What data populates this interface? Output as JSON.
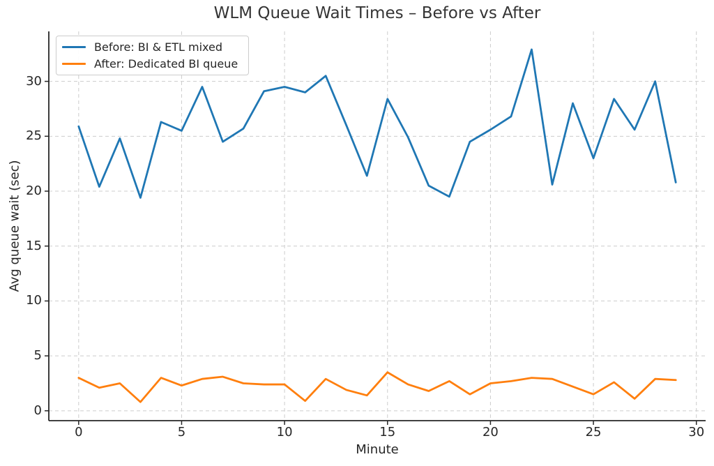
{
  "chart_data": {
    "type": "line",
    "title": "WLM Queue Wait Times – Before vs After",
    "xlabel": "Minute",
    "ylabel": "Avg queue wait (sec)",
    "x": [
      0,
      1,
      2,
      3,
      4,
      5,
      6,
      7,
      8,
      9,
      10,
      11,
      12,
      13,
      14,
      15,
      16,
      17,
      18,
      19,
      20,
      21,
      22,
      23,
      24,
      25,
      26,
      27,
      28,
      29
    ],
    "series": [
      {
        "name": "Before: BI & ETL mixed",
        "color": "#1f77b4",
        "values": [
          25.9,
          20.4,
          24.8,
          19.4,
          26.3,
          25.5,
          29.5,
          24.5,
          25.7,
          29.1,
          29.5,
          29.0,
          30.5,
          26.0,
          21.4,
          28.4,
          24.9,
          20.5,
          19.5,
          24.5,
          25.6,
          26.8,
          32.9,
          20.6,
          28.0,
          23.0,
          28.4,
          25.6,
          30.0,
          20.8
        ]
      },
      {
        "name": "After: Dedicated BI queue",
        "color": "#ff7f0e",
        "values": [
          3.0,
          2.1,
          2.5,
          0.8,
          3.0,
          2.3,
          2.9,
          3.1,
          2.5,
          2.4,
          2.4,
          0.9,
          2.9,
          1.9,
          1.4,
          3.5,
          2.4,
          1.8,
          2.7,
          1.5,
          2.5,
          2.7,
          3.0,
          2.9,
          2.2,
          1.5,
          2.6,
          1.1,
          2.9,
          2.8
        ]
      }
    ],
    "x_ticks": [
      0,
      5,
      10,
      15,
      20,
      25,
      30
    ],
    "y_ticks": [
      0,
      5,
      10,
      15,
      20,
      25,
      30
    ],
    "xlim": [
      -1.45,
      30.45
    ],
    "ylim": [
      -0.9,
      34.55
    ],
    "grid": true,
    "grid_style": "dashed",
    "legend_position": "upper left",
    "colors": {
      "background": "#ffffff",
      "grid": "#cccccc",
      "axis": "#262626",
      "text": "#262626",
      "title_text": "#343434"
    }
  }
}
